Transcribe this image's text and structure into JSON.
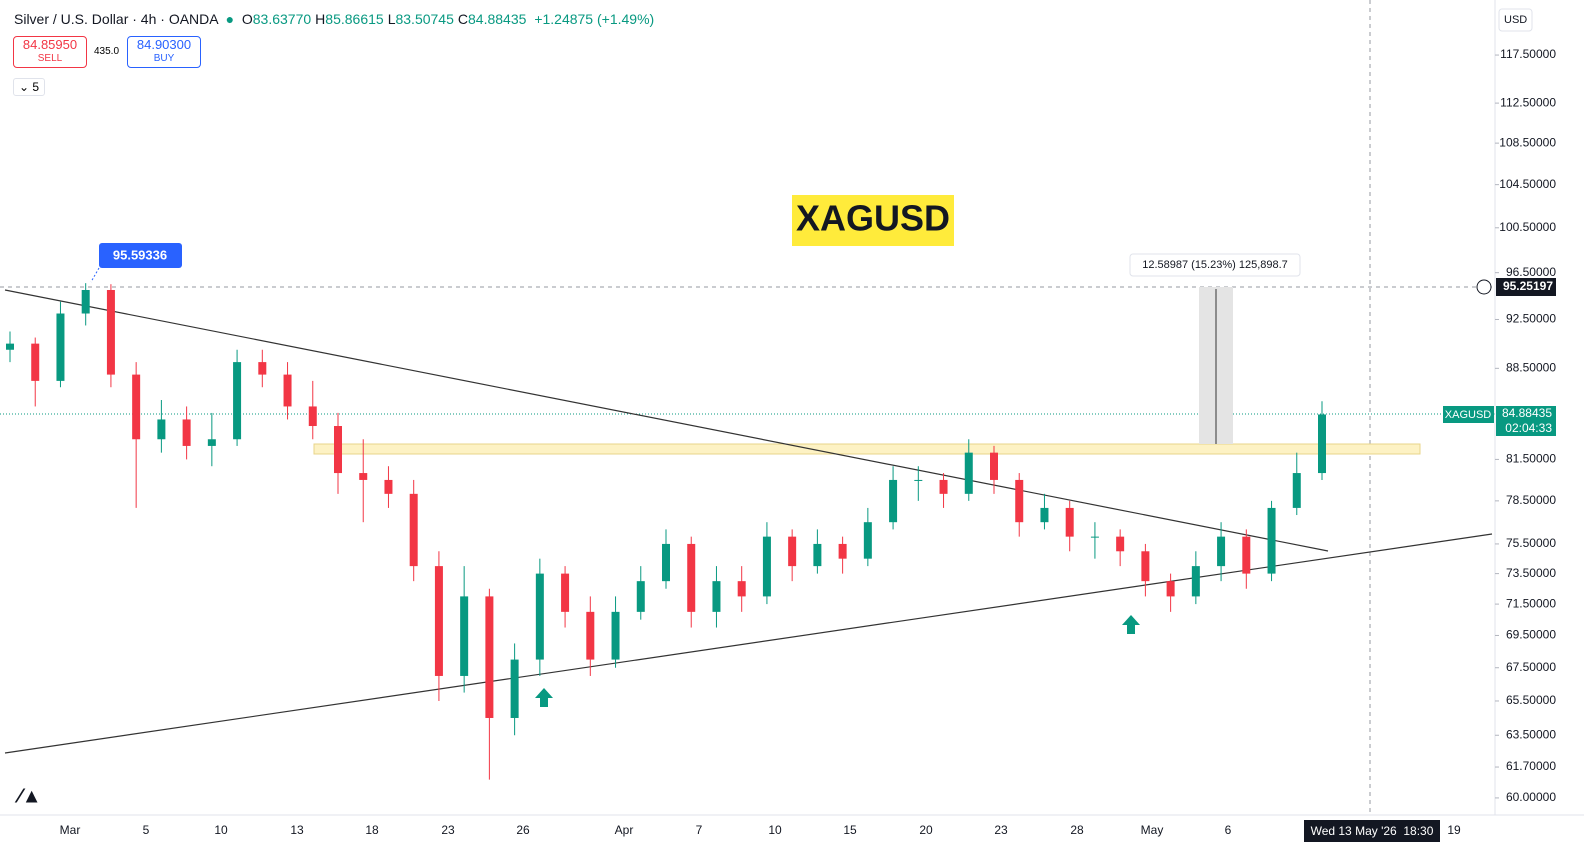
{
  "header": {
    "title": "Silver / U.S. Dollar · 4h · OANDA",
    "ohlc": [
      {
        "label": "O",
        "value": "83.63770"
      },
      {
        "label": "H",
        "value": "85.86615"
      },
      {
        "label": "L",
        "value": "83.50745"
      },
      {
        "label": "C",
        "value": "84.88435"
      }
    ],
    "change": "+1.24875 (+1.49%)"
  },
  "trade": {
    "sell_price": "84.85950",
    "sell": "SELL",
    "spread": "435.0",
    "buy_price": "84.90300",
    "buy": "BUY",
    "indicators": "5"
  },
  "chart": {
    "type": "candlestick",
    "symbol_label": "XAGUSD",
    "currency": "USD",
    "high_callout": "95.59336",
    "measure": "12.58987 (15.23%) 125,898.7",
    "crosshair_price": "95.25197",
    "last_symbol": "XAGUSD",
    "last_price": "84.88435",
    "countdown": "02:04:33",
    "crosshair_time": "Wed 13 May '26  18:30",
    "log_scale": true,
    "ylim": [
      59.08,
      123.5
    ],
    "yticks": [
      {
        "value": 117.5,
        "label": "117.50000"
      },
      {
        "value": 112.5,
        "label": "112.50000"
      },
      {
        "value": 108.5,
        "label": "108.50000"
      },
      {
        "value": 104.5,
        "label": "104.50000"
      },
      {
        "value": 100.5,
        "label": "100.50000"
      },
      {
        "value": 96.5,
        "label": "96.50000"
      },
      {
        "value": 92.5,
        "label": "92.50000"
      },
      {
        "value": 88.5,
        "label": "88.50000"
      },
      {
        "value": 81.5,
        "label": "81.50000"
      },
      {
        "value": 78.5,
        "label": "78.50000"
      },
      {
        "value": 75.5,
        "label": "75.50000"
      },
      {
        "value": 73.5,
        "label": "73.50000"
      },
      {
        "value": 71.5,
        "label": "71.50000"
      },
      {
        "value": 69.5,
        "label": "69.50000"
      },
      {
        "value": 67.5,
        "label": "67.50000"
      },
      {
        "value": 65.5,
        "label": "65.50000"
      },
      {
        "value": 63.5,
        "label": "63.50000"
      },
      {
        "value": 61.7,
        "label": "61.70000"
      },
      {
        "value": 60,
        "label": "60.00000"
      }
    ],
    "xticks": [
      "Mar",
      "5",
      "10",
      "13",
      "18",
      "23",
      "26",
      "Apr",
      "7",
      "10",
      "15",
      "20",
      "23",
      "28",
      "May",
      "6",
      "19"
    ],
    "up_color": "#089981",
    "down_color": "#f23645",
    "candles": [
      [
        90,
        91.5,
        89,
        90.5
      ],
      [
        90.5,
        91,
        85.5,
        87.5
      ],
      [
        87.5,
        94,
        87,
        93
      ],
      [
        93,
        95.59,
        92,
        95
      ],
      [
        95,
        95.5,
        87,
        88
      ],
      [
        88,
        89,
        78,
        83
      ],
      [
        83,
        86,
        82,
        84.5
      ],
      [
        84.5,
        85.5,
        81.5,
        82.5
      ],
      [
        82.5,
        85,
        81,
        83
      ],
      [
        83,
        90,
        82.5,
        89
      ],
      [
        89,
        90,
        87,
        88
      ],
      [
        88,
        89,
        84.5,
        85.5
      ],
      [
        85.5,
        87.5,
        83,
        84
      ],
      [
        84,
        85,
        79,
        80.5
      ],
      [
        80.5,
        83,
        77,
        80
      ],
      [
        80,
        81,
        78,
        79
      ],
      [
        79,
        80,
        73,
        74
      ],
      [
        74,
        75,
        65.5,
        67
      ],
      [
        67,
        74,
        66,
        72
      ],
      [
        72,
        72.5,
        61,
        64.5
      ],
      [
        64.5,
        69,
        63.5,
        68
      ],
      [
        68,
        74.5,
        67,
        73.5
      ],
      [
        73.5,
        74,
        70,
        71
      ],
      [
        71,
        72,
        67,
        68
      ],
      [
        68,
        72,
        67.5,
        71
      ],
      [
        71,
        74,
        70.5,
        73
      ],
      [
        73,
        76.5,
        72.5,
        75.5
      ],
      [
        75.5,
        76,
        70,
        71
      ],
      [
        71,
        74,
        70,
        73
      ],
      [
        73,
        74,
        71,
        72
      ],
      [
        72,
        77,
        71.5,
        76
      ],
      [
        76,
        76.5,
        73,
        74
      ],
      [
        74,
        76.5,
        73.5,
        75.5
      ],
      [
        75.5,
        76,
        73.5,
        74.5
      ],
      [
        74.5,
        78,
        74,
        77
      ],
      [
        77,
        81,
        76.5,
        80
      ],
      [
        80,
        81,
        78.5,
        80
      ],
      [
        80,
        80.5,
        78,
        79
      ],
      [
        79,
        83,
        78.5,
        82
      ],
      [
        82,
        82.5,
        79,
        80
      ],
      [
        80,
        80.5,
        76,
        77
      ],
      [
        77,
        79,
        76.5,
        78
      ],
      [
        78,
        78.5,
        75,
        76
      ],
      [
        76,
        77,
        74.5,
        76
      ],
      [
        76,
        76.5,
        74,
        75
      ],
      [
        75,
        75.5,
        72,
        73
      ],
      [
        73,
        73.5,
        71,
        72
      ],
      [
        72,
        75,
        71.5,
        74
      ],
      [
        74,
        77,
        73,
        76
      ],
      [
        76,
        76.5,
        72.5,
        73.5
      ],
      [
        73.5,
        78.5,
        73,
        78
      ],
      [
        78,
        82,
        77.5,
        80.5
      ],
      [
        80.5,
        85.9,
        80,
        84.88
      ]
    ]
  }
}
